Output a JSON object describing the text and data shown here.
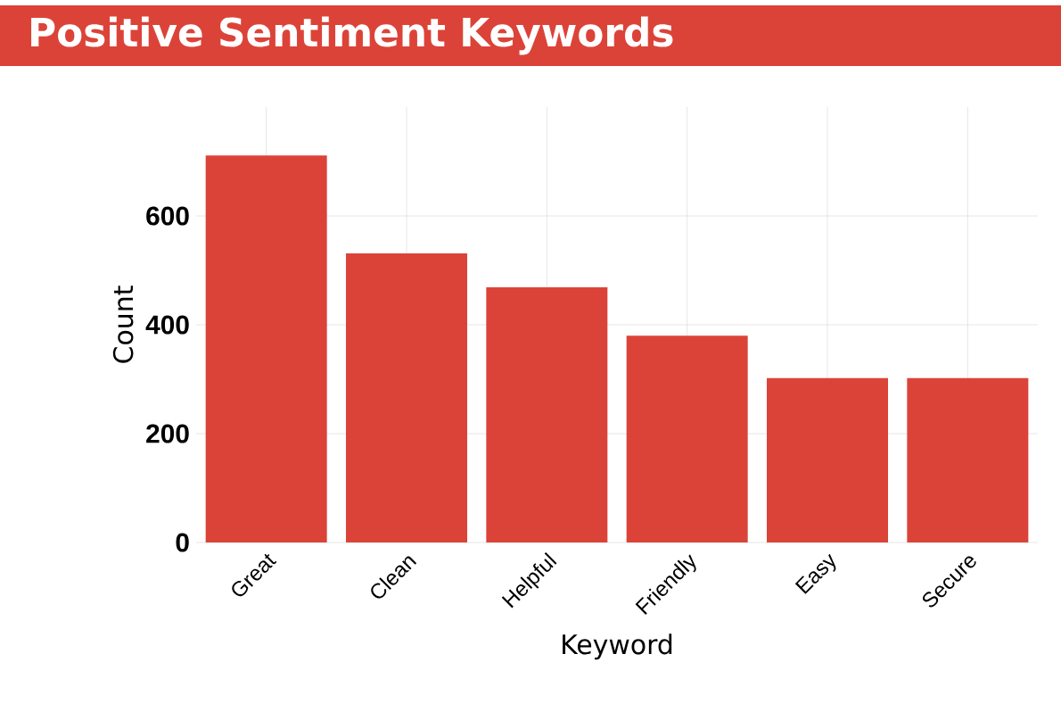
{
  "chart_data": {
    "type": "bar",
    "title": "Positive Sentiment Keywords",
    "xlabel": "Keyword",
    "ylabel": "Count",
    "categories": [
      "Great",
      "Clean",
      "Helpful",
      "Friendly",
      "Easy",
      "Secure"
    ],
    "values": [
      711,
      531,
      469,
      380,
      302,
      302
    ],
    "color": "#dc4338",
    "ylim": [
      0,
      800
    ],
    "yticks": [
      0,
      200,
      400,
      600
    ],
    "grid": true,
    "legend": false
  }
}
